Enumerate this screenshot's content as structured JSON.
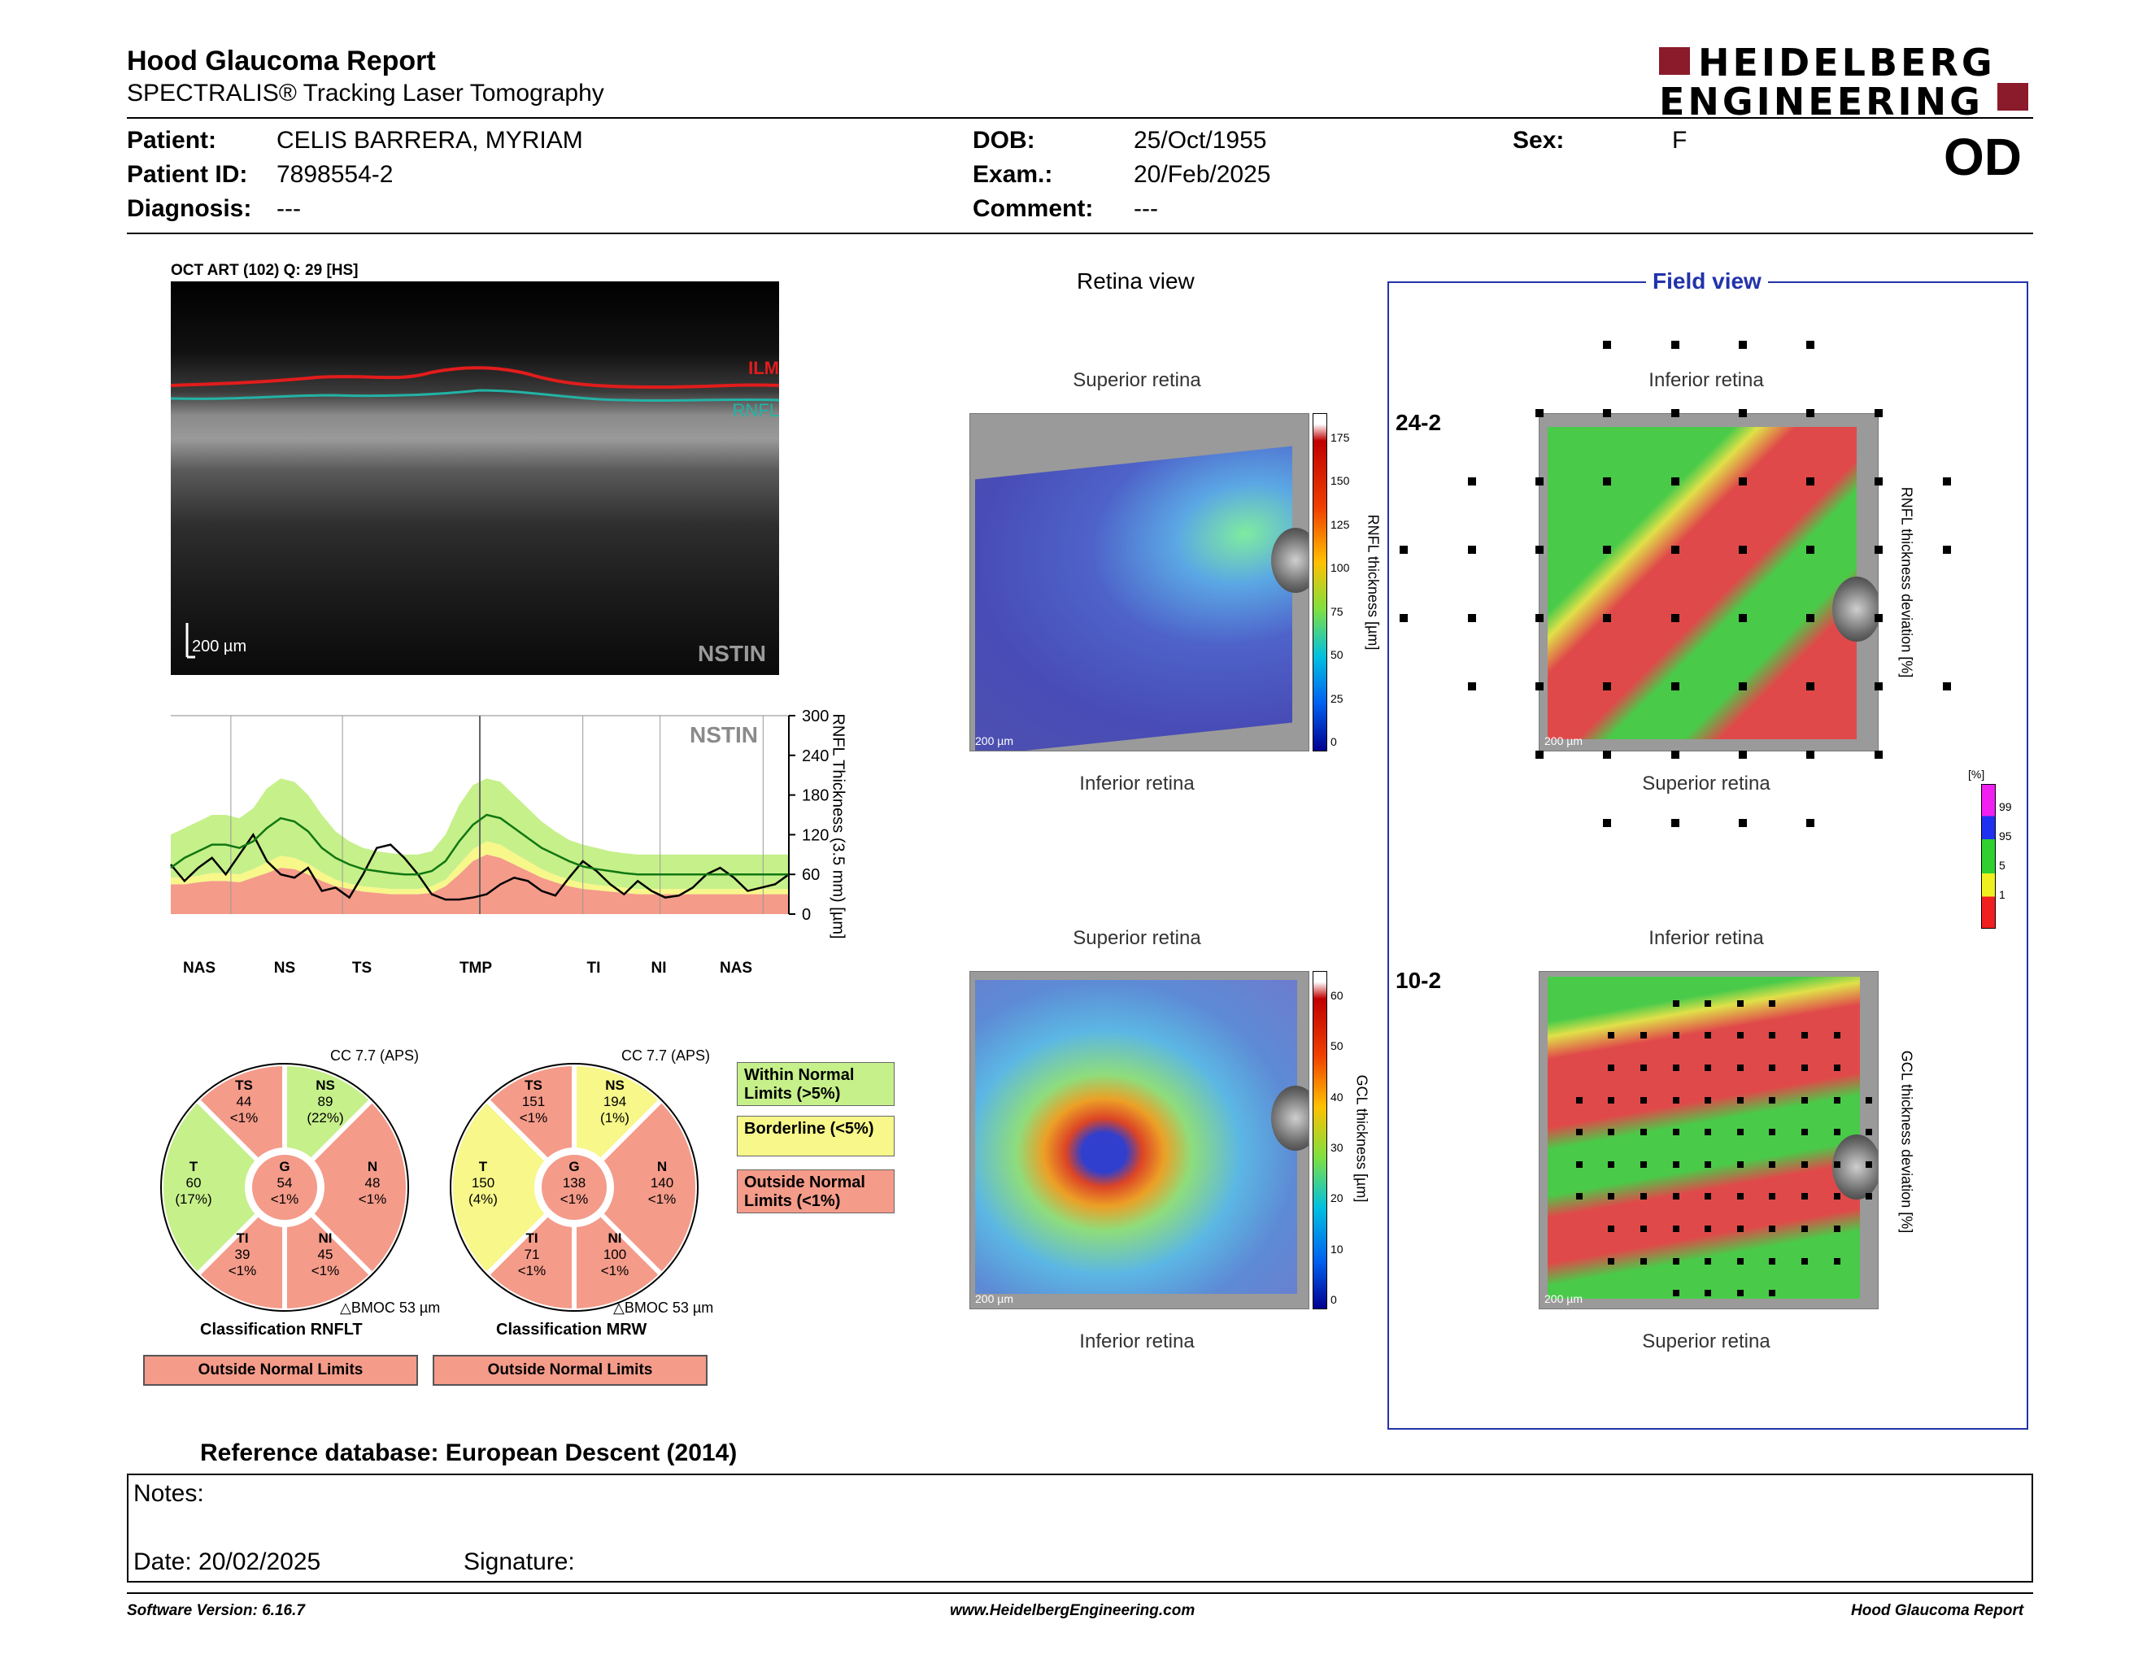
{
  "header": {
    "title": "Hood Glaucoma Report",
    "subtitle": "SPECTRALIS® Tracking Laser Tomography",
    "logo_line1": "HEIDELBERG",
    "logo_line2": "ENGINEERING",
    "eye": "OD"
  },
  "patient": {
    "patient_label": "Patient:",
    "patient_value": "CELIS BARRERA, MYRIAM",
    "id_label": "Patient ID:",
    "id_value": "7898554-2",
    "diagnosis_label": "Diagnosis:",
    "diagnosis_value": "---",
    "dob_label": "DOB:",
    "dob_value": "25/Oct/1955",
    "exam_label": "Exam.:",
    "exam_value": "20/Feb/2025",
    "comment_label": "Comment:",
    "comment_value": "---",
    "sex_label": "Sex:",
    "sex_value": "F"
  },
  "oct": {
    "title": "OCT ART (102) Q: 29 [HS]",
    "ilm": "ILM",
    "rnfl": "RNFL",
    "scale": "200 µm",
    "nstin": "NSTIN"
  },
  "chart_data": {
    "type": "line",
    "title": "NSTIN",
    "ylabel": "RNFL Thickness (3.5 mm) [µm]",
    "ylim": [
      0,
      300
    ],
    "yticks": [
      0,
      60,
      120,
      180,
      240,
      300
    ],
    "sector_labels": [
      "NAS",
      "NS",
      "TS",
      "TMP",
      "TI",
      "NI",
      "NAS"
    ],
    "x": [
      0,
      8,
      16,
      24,
      32,
      40,
      48,
      56,
      64,
      72,
      80,
      88,
      96,
      104,
      112,
      120,
      128,
      136,
      144,
      152,
      160,
      168,
      176,
      184,
      192,
      200,
      208,
      216,
      224,
      232,
      240,
      248,
      256,
      264,
      272,
      280,
      288,
      296,
      304,
      312,
      320,
      328,
      336,
      344,
      352,
      360
    ],
    "series": [
      {
        "name": "measured",
        "values": [
          75,
          50,
          70,
          85,
          60,
          90,
          120,
          80,
          60,
          55,
          70,
          35,
          40,
          25,
          60,
          100,
          105,
          85,
          60,
          30,
          22,
          22,
          25,
          30,
          45,
          55,
          50,
          35,
          28,
          55,
          80,
          65,
          45,
          30,
          50,
          35,
          25,
          28,
          40,
          60,
          70,
          55,
          35,
          40,
          45,
          60
        ]
      },
      {
        "name": "normal_mean",
        "values": [
          70,
          85,
          95,
          105,
          105,
          100,
          110,
          130,
          145,
          140,
          125,
          100,
          85,
          75,
          68,
          65,
          62,
          60,
          60,
          65,
          80,
          110,
          135,
          150,
          145,
          130,
          115,
          100,
          90,
          80,
          72,
          68,
          65,
          62,
          60,
          60,
          60,
          60,
          60,
          60,
          60,
          60,
          60,
          60,
          60,
          60
        ]
      }
    ],
    "bands": {
      "red_upper": [
        45,
        45,
        48,
        50,
        50,
        48,
        55,
        62,
        70,
        68,
        60,
        50,
        42,
        38,
        34,
        32,
        30,
        30,
        30,
        32,
        42,
        60,
        80,
        90,
        85,
        75,
        65,
        55,
        48,
        42,
        38,
        36,
        34,
        32,
        30,
        30,
        30,
        30,
        30,
        30,
        30,
        30,
        30,
        30,
        30,
        30
      ],
      "yellow_upper": [
        55,
        55,
        58,
        62,
        62,
        60,
        68,
        78,
        88,
        85,
        76,
        63,
        52,
        46,
        42,
        40,
        38,
        38,
        38,
        42,
        52,
        75,
        98,
        110,
        105,
        92,
        80,
        68,
        59,
        52,
        47,
        44,
        42,
        40,
        38,
        38,
        38,
        38,
        38,
        38,
        38,
        38,
        38,
        38,
        38,
        38
      ],
      "green_upper": [
        120,
        130,
        140,
        150,
        150,
        145,
        160,
        190,
        205,
        200,
        180,
        150,
        125,
        110,
        100,
        95,
        92,
        90,
        90,
        95,
        120,
        165,
        195,
        205,
        200,
        180,
        160,
        140,
        125,
        112,
        105,
        100,
        95,
        92,
        90,
        90,
        90,
        90,
        90,
        90,
        90,
        90,
        90,
        90,
        90,
        90
      ]
    }
  },
  "sectors_rnfl": {
    "cc": "CC 7.7 (APS)",
    "TS": {
      "label": "TS",
      "value": "44",
      "pct": "<1%"
    },
    "NS": {
      "label": "NS",
      "value": "89",
      "pct": "(22%)"
    },
    "N": {
      "label": "N",
      "value": "48",
      "pct": "<1%"
    },
    "NI": {
      "label": "NI",
      "value": "45",
      "pct": "<1%"
    },
    "TI": {
      "label": "TI",
      "value": "39",
      "pct": "<1%"
    },
    "T": {
      "label": "T",
      "value": "60",
      "pct": "(17%)"
    },
    "G": {
      "label": "G",
      "value": "54",
      "pct": "<1%"
    },
    "bmoc": "BMOC 53 µm",
    "classification_label": "Classification RNFLT",
    "classification_result": "Outside Normal Limits"
  },
  "sectors_mrw": {
    "cc": "CC 7.7 (APS)",
    "TS": {
      "label": "TS",
      "value": "151",
      "pct": "<1%"
    },
    "NS": {
      "label": "NS",
      "value": "194",
      "pct": "(1%)"
    },
    "N": {
      "label": "N",
      "value": "140",
      "pct": "<1%"
    },
    "NI": {
      "label": "NI",
      "value": "100",
      "pct": "<1%"
    },
    "TI": {
      "label": "TI",
      "value": "71",
      "pct": "<1%"
    },
    "T": {
      "label": "T",
      "value": "150",
      "pct": "(4%)"
    },
    "G": {
      "label": "G",
      "value": "138",
      "pct": "<1%"
    },
    "bmoc": "BMOC 53 µm",
    "classification_label": "Classification MRW",
    "classification_result": "Outside Normal Limits"
  },
  "legend": {
    "within": "Within Normal Limits (>5%)",
    "borderline": "Borderline (<5%)",
    "outside": "Outside Normal Limits (<1%)"
  },
  "retina_view": {
    "title": "Retina view",
    "superior": "Superior retina",
    "inferior": "Inferior retina",
    "rnfl_colorbar_label": "RNFL thickness [µm]",
    "rnfl_ticks": [
      "175",
      "150",
      "125",
      "100",
      "75",
      "50",
      "25",
      "0"
    ],
    "gcl_colorbar_label": "GCL thickness [µm]",
    "gcl_ticks": [
      "60",
      "50",
      "40",
      "30",
      "20",
      "10",
      "0"
    ],
    "scale": "200 µm"
  },
  "field_view": {
    "title": "Field view",
    "label_242": "24-2",
    "label_102": "10-2",
    "superior": "Superior retina",
    "inferior": "Inferior retina",
    "rnfl_dev_label": "RNFL thickness deviation [%]",
    "gcl_dev_label": "GCL thickness deviation [%]",
    "pct_unit": "[%]",
    "pct_ticks": [
      "99",
      "95",
      "5",
      "1"
    ],
    "scale": "200 µm"
  },
  "colors": {
    "green": "#c6f08a",
    "yellow": "#f7f78a",
    "red": "#f49b8a",
    "field_border": "#2233aa",
    "logo_red": "#8b1a2b"
  },
  "reference": "Reference database: European Descent (2014)",
  "notes": {
    "notes_label": "Notes:",
    "date_label": "Date: 20/02/2025",
    "signature_label": "Signature:"
  },
  "footer": {
    "software": "Software Version: 6.16.7",
    "url": "www.HeidelbergEngineering.com",
    "report": "Hood Glaucoma Report"
  }
}
